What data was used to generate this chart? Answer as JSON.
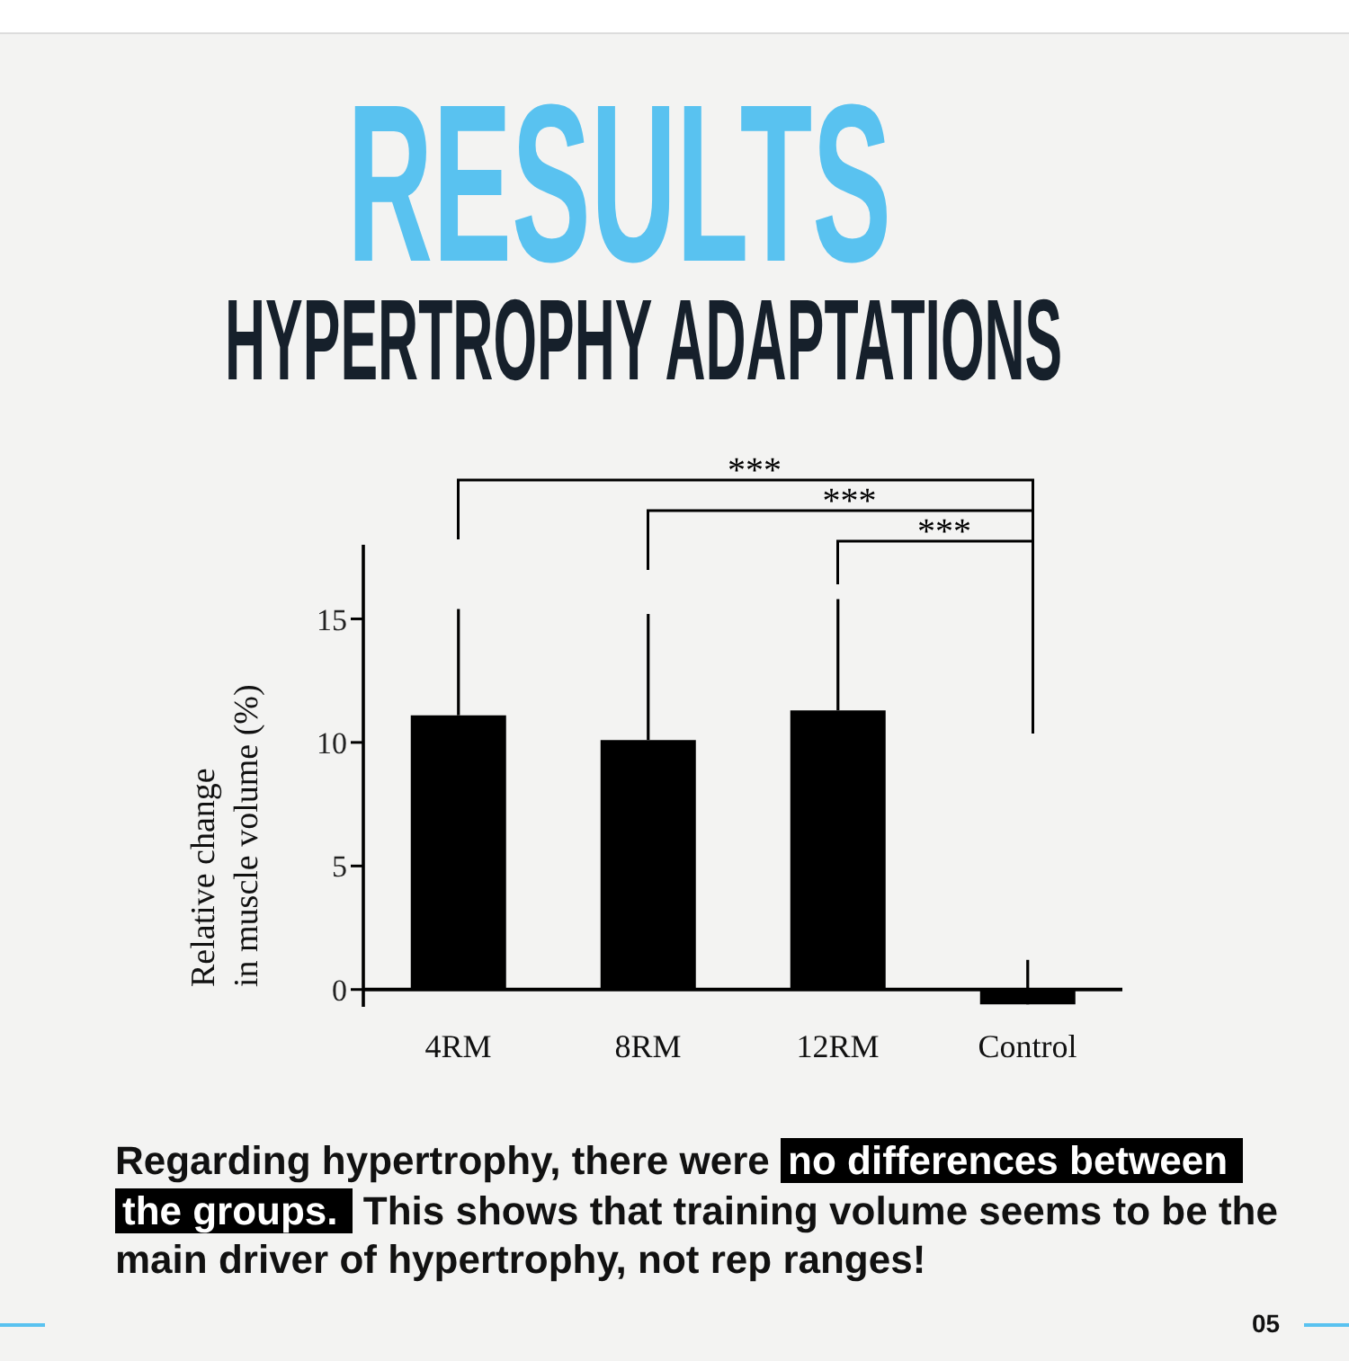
{
  "chart_data": {
    "type": "bar",
    "title": "RESULTS",
    "subtitle": "HYPERTROPHY ADAPTATIONS",
    "ylabel": "Relative change\nin muscle volume (%)",
    "categories": [
      "4RM",
      "8RM",
      "12RM",
      "Control"
    ],
    "values": [
      11.1,
      10.1,
      11.3,
      -0.6
    ],
    "errors": [
      [
        11.1,
        15.4
      ],
      [
        10.1,
        15.2
      ],
      [
        11.3,
        15.8
      ],
      [
        -0.6,
        1.2
      ]
    ],
    "color": "#000000",
    "ylim": [
      -0.7,
      18
    ],
    "yticks": [
      0,
      5,
      10,
      15
    ],
    "annotations": [
      "***",
      "***",
      "***",
      "Regarding hypertrophy, there were",
      "no differences between",
      "the groups.",
      "This shows that training volume seems to be the",
      "main driver of hypertrophy, not rep ranges!",
      "05"
    ]
  }
}
